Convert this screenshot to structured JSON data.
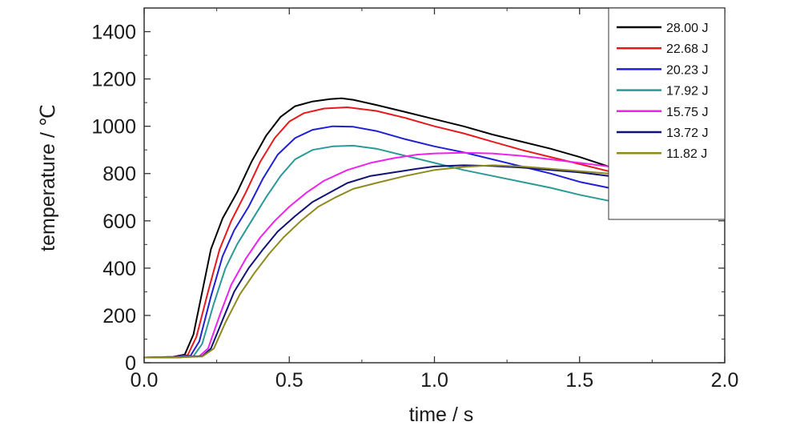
{
  "chart_data": {
    "type": "line",
    "xlabel": "time / s",
    "ylabel": "temperature / ℃",
    "xlim": [
      0,
      2.0
    ],
    "ylim": [
      0,
      1500
    ],
    "xticks": [
      "0.0",
      "0.5",
      "1.0",
      "1.5",
      "2.0"
    ],
    "yticks": [
      "0",
      "200",
      "400",
      "600",
      "800",
      "1000",
      "1200",
      "1400"
    ],
    "grid": false,
    "legend_position": "top-right",
    "series": [
      {
        "name": "28.00 J",
        "color": "#000000",
        "points": [
          [
            0,
            22
          ],
          [
            0.1,
            25
          ],
          [
            0.14,
            35
          ],
          [
            0.17,
            120
          ],
          [
            0.2,
            300
          ],
          [
            0.23,
            480
          ],
          [
            0.27,
            610
          ],
          [
            0.32,
            720
          ],
          [
            0.37,
            850
          ],
          [
            0.42,
            960
          ],
          [
            0.47,
            1040
          ],
          [
            0.52,
            1085
          ],
          [
            0.58,
            1105
          ],
          [
            0.64,
            1115
          ],
          [
            0.68,
            1118
          ],
          [
            0.72,
            1112
          ],
          [
            0.8,
            1090
          ],
          [
            0.9,
            1060
          ],
          [
            1.0,
            1030
          ],
          [
            1.1,
            1000
          ],
          [
            1.2,
            965
          ],
          [
            1.3,
            935
          ],
          [
            1.4,
            905
          ],
          [
            1.5,
            870
          ],
          [
            1.6,
            830
          ]
        ]
      },
      {
        "name": "22.68 J",
        "color": "#e8191c",
        "points": [
          [
            0,
            22
          ],
          [
            0.1,
            24
          ],
          [
            0.15,
            32
          ],
          [
            0.18,
            110
          ],
          [
            0.22,
            300
          ],
          [
            0.26,
            480
          ],
          [
            0.3,
            600
          ],
          [
            0.35,
            720
          ],
          [
            0.4,
            850
          ],
          [
            0.45,
            950
          ],
          [
            0.5,
            1020
          ],
          [
            0.55,
            1055
          ],
          [
            0.62,
            1075
          ],
          [
            0.7,
            1080
          ],
          [
            0.8,
            1065
          ],
          [
            0.9,
            1035
          ],
          [
            1.0,
            1000
          ],
          [
            1.1,
            970
          ],
          [
            1.2,
            935
          ],
          [
            1.3,
            900
          ],
          [
            1.4,
            870
          ],
          [
            1.5,
            840
          ],
          [
            1.6,
            810
          ]
        ]
      },
      {
        "name": "20.23 J",
        "color": "#1f1fd6",
        "points": [
          [
            0,
            22
          ],
          [
            0.1,
            24
          ],
          [
            0.16,
            30
          ],
          [
            0.19,
            90
          ],
          [
            0.23,
            280
          ],
          [
            0.27,
            450
          ],
          [
            0.31,
            560
          ],
          [
            0.36,
            660
          ],
          [
            0.41,
            780
          ],
          [
            0.46,
            880
          ],
          [
            0.52,
            950
          ],
          [
            0.58,
            985
          ],
          [
            0.65,
            1000
          ],
          [
            0.72,
            998
          ],
          [
            0.8,
            980
          ],
          [
            0.9,
            945
          ],
          [
            1.0,
            915
          ],
          [
            1.1,
            890
          ],
          [
            1.2,
            860
          ],
          [
            1.3,
            830
          ],
          [
            1.4,
            800
          ],
          [
            1.5,
            765
          ],
          [
            1.6,
            740
          ]
        ]
      },
      {
        "name": "17.92 J",
        "color": "#2a9a97",
        "points": [
          [
            0,
            22
          ],
          [
            0.1,
            23
          ],
          [
            0.17,
            28
          ],
          [
            0.2,
            80
          ],
          [
            0.24,
            250
          ],
          [
            0.28,
            400
          ],
          [
            0.32,
            500
          ],
          [
            0.37,
            600
          ],
          [
            0.42,
            700
          ],
          [
            0.47,
            790
          ],
          [
            0.52,
            860
          ],
          [
            0.58,
            900
          ],
          [
            0.65,
            915
          ],
          [
            0.72,
            918
          ],
          [
            0.8,
            905
          ],
          [
            0.9,
            875
          ],
          [
            1.0,
            845
          ],
          [
            1.1,
            815
          ],
          [
            1.2,
            790
          ],
          [
            1.3,
            765
          ],
          [
            1.4,
            740
          ],
          [
            1.5,
            710
          ],
          [
            1.6,
            685
          ]
        ]
      },
      {
        "name": "15.75 J",
        "color": "#ee22ee",
        "points": [
          [
            0,
            22
          ],
          [
            0.12,
            23
          ],
          [
            0.19,
            28
          ],
          [
            0.22,
            60
          ],
          [
            0.26,
            200
          ],
          [
            0.3,
            330
          ],
          [
            0.35,
            440
          ],
          [
            0.4,
            530
          ],
          [
            0.45,
            600
          ],
          [
            0.5,
            660
          ],
          [
            0.56,
            720
          ],
          [
            0.62,
            770
          ],
          [
            0.7,
            815
          ],
          [
            0.78,
            845
          ],
          [
            0.86,
            865
          ],
          [
            0.94,
            880
          ],
          [
            1.0,
            885
          ],
          [
            1.1,
            888
          ],
          [
            1.2,
            885
          ],
          [
            1.3,
            875
          ],
          [
            1.4,
            860
          ],
          [
            1.5,
            845
          ],
          [
            1.6,
            830
          ]
        ]
      },
      {
        "name": "13.72 J",
        "color": "#111177",
        "points": [
          [
            0,
            22
          ],
          [
            0.12,
            23
          ],
          [
            0.2,
            28
          ],
          [
            0.23,
            60
          ],
          [
            0.27,
            180
          ],
          [
            0.31,
            300
          ],
          [
            0.36,
            400
          ],
          [
            0.41,
            480
          ],
          [
            0.46,
            555
          ],
          [
            0.52,
            620
          ],
          [
            0.58,
            680
          ],
          [
            0.64,
            720
          ],
          [
            0.7,
            760
          ],
          [
            0.78,
            790
          ],
          [
            0.86,
            805
          ],
          [
            0.94,
            820
          ],
          [
            1.0,
            830
          ],
          [
            1.1,
            835
          ],
          [
            1.2,
            832
          ],
          [
            1.3,
            825
          ],
          [
            1.4,
            815
          ],
          [
            1.5,
            805
          ],
          [
            1.6,
            790
          ]
        ]
      },
      {
        "name": "11.82 J",
        "color": "#8e8a1e",
        "points": [
          [
            0,
            22
          ],
          [
            0.12,
            23
          ],
          [
            0.2,
            26
          ],
          [
            0.24,
            60
          ],
          [
            0.28,
            170
          ],
          [
            0.33,
            290
          ],
          [
            0.38,
            380
          ],
          [
            0.43,
            460
          ],
          [
            0.48,
            530
          ],
          [
            0.54,
            600
          ],
          [
            0.6,
            660
          ],
          [
            0.66,
            700
          ],
          [
            0.72,
            735
          ],
          [
            0.8,
            760
          ],
          [
            0.9,
            790
          ],
          [
            1.0,
            815
          ],
          [
            1.1,
            828
          ],
          [
            1.2,
            835
          ],
          [
            1.3,
            830
          ],
          [
            1.4,
            820
          ],
          [
            1.5,
            810
          ],
          [
            1.6,
            800
          ]
        ]
      }
    ]
  }
}
